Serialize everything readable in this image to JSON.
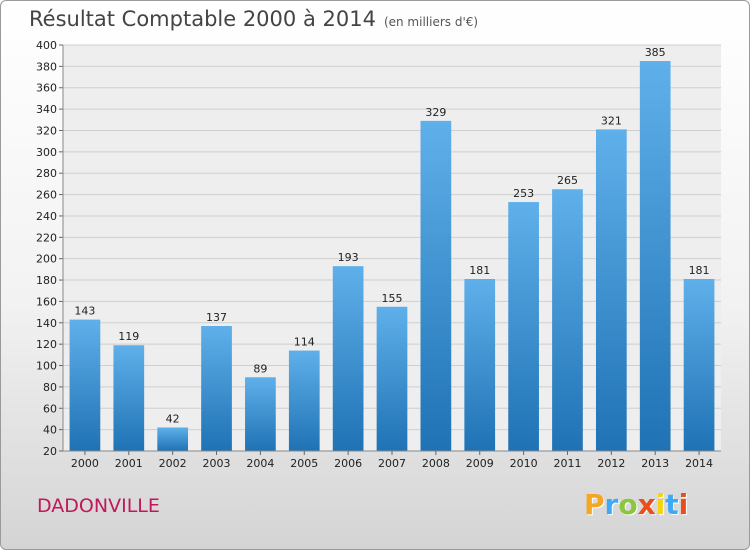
{
  "header": {
    "title": "Résultat Comptable 2000 à 2014",
    "unit": "(en milliers d'€)"
  },
  "footer": {
    "city": "DADONVILLE",
    "logo_letters": [
      "P",
      "r",
      "o",
      "x",
      "i",
      "t",
      "i"
    ],
    "logo_colors": [
      "#f5a623",
      "#3fa9f5",
      "#8cc63f",
      "#e94e1b",
      "#f5d40f",
      "#3fa9f5",
      "#e94e1b"
    ]
  },
  "colors": {
    "bar_light": "#5fb0ea",
    "bar_dark": "#1f72b4",
    "grid": "#cfcfcf",
    "plot_bg": "#eeeeee"
  },
  "chart_data": {
    "type": "bar",
    "categories": [
      "2000",
      "2001",
      "2002",
      "2003",
      "2004",
      "2005",
      "2006",
      "2007",
      "2008",
      "2009",
      "2010",
      "2011",
      "2012",
      "2013",
      "2014"
    ],
    "values": [
      143,
      119,
      42,
      137,
      89,
      114,
      193,
      155,
      329,
      181,
      253,
      265,
      321,
      385,
      181
    ],
    "ylim": [
      20,
      400
    ],
    "yticks": [
      20,
      40,
      60,
      80,
      100,
      120,
      140,
      160,
      180,
      200,
      220,
      240,
      260,
      280,
      300,
      320,
      340,
      360,
      380,
      400
    ],
    "grid": true
  }
}
